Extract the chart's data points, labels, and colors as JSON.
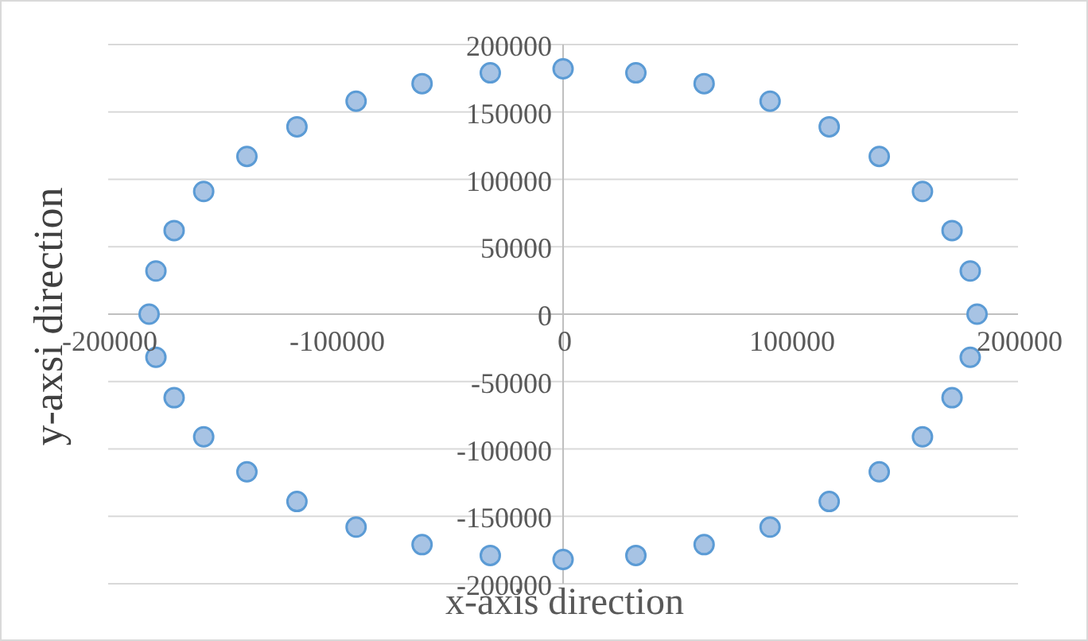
{
  "chart_data": {
    "type": "scatter",
    "xlabel": "x-axis direction",
    "ylabel": "y-axsi direction",
    "xlim": [
      -200000,
      200000
    ],
    "xticks": [
      -200000,
      -100000,
      0,
      100000,
      200000
    ],
    "ylim": [
      -200000,
      200000
    ],
    "yticks": [
      -200000,
      -150000,
      -100000,
      -50000,
      0,
      50000,
      100000,
      150000,
      200000
    ],
    "grid": "y",
    "marker": "circle",
    "series": [
      {
        "color": "#5b9bd5",
        "x": [
          182000,
          179000,
          171000,
          158000,
          139000,
          117000,
          91000,
          62000,
          32000,
          0,
          -32000,
          -62000,
          -91000,
          -117000,
          -139000,
          -158000,
          -171000,
          -179000,
          -182000,
          -179000,
          -171000,
          -158000,
          -139000,
          -117000,
          -91000,
          -62000,
          -32000,
          0,
          32000,
          62000,
          91000,
          117000,
          139000,
          158000,
          171000,
          179000
        ],
        "values": [
          0,
          32000,
          62000,
          91000,
          117000,
          139000,
          158000,
          171000,
          179000,
          182000,
          179000,
          171000,
          158000,
          139000,
          117000,
          91000,
          62000,
          32000,
          0,
          -32000,
          -62000,
          -91000,
          -117000,
          -139000,
          -158000,
          -171000,
          -179000,
          -182000,
          -179000,
          -171000,
          -158000,
          -139000,
          -117000,
          -91000,
          -62000,
          -32000
        ]
      }
    ]
  }
}
